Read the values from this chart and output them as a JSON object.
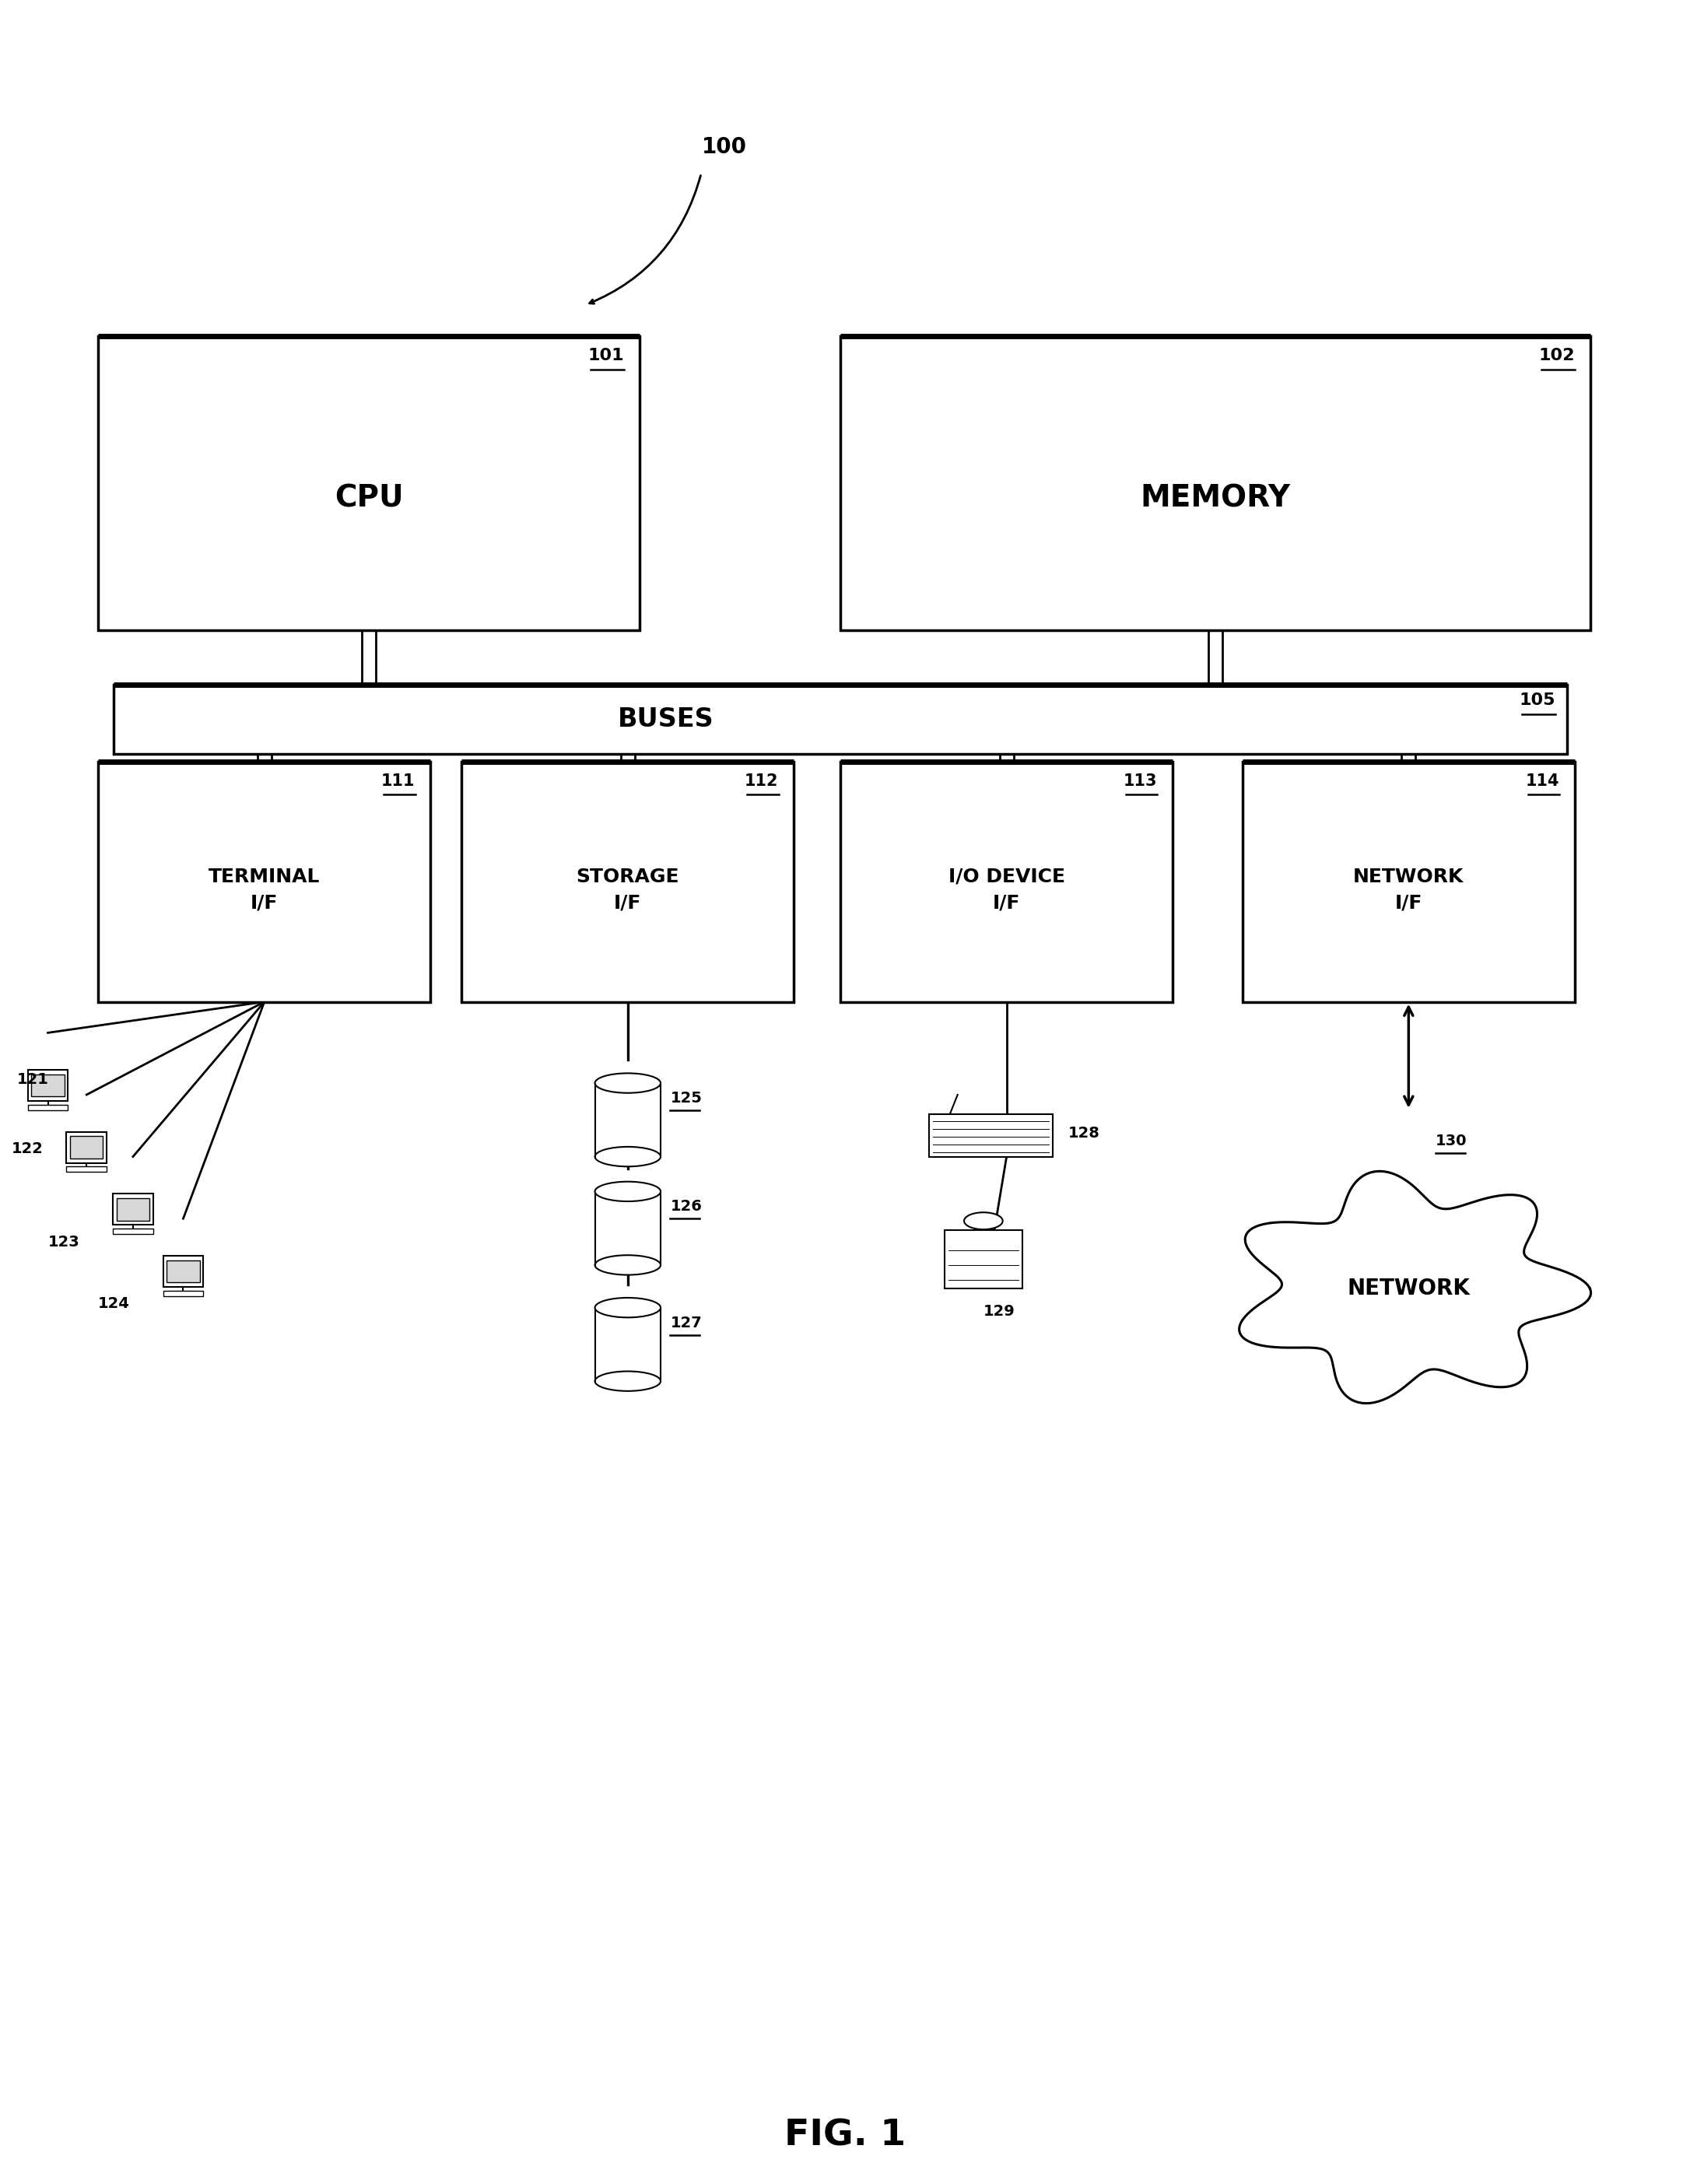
{
  "bg_color": "#ffffff",
  "fig_label": "FIG. 1",
  "label_100": "100",
  "label_101": "101",
  "label_102": "102",
  "label_105": "105",
  "label_111": "111",
  "label_112": "112",
  "label_113": "113",
  "label_114": "114",
  "label_121": "121",
  "label_122": "122",
  "label_123": "123",
  "label_124": "124",
  "label_125": "125",
  "label_126": "126",
  "label_127": "127",
  "label_128": "128",
  "label_129": "129",
  "label_130": "130",
  "text_cpu": "CPU",
  "text_memory": "MEMORY",
  "text_buses": "BUSES",
  "text_terminal": "TERMINAL\nI/F",
  "text_storage": "STORAGE\nI/F",
  "text_io": "I/O DEVICE\nI/F",
  "text_network_if": "NETWORK\nI/F",
  "text_network": "NETWORK"
}
